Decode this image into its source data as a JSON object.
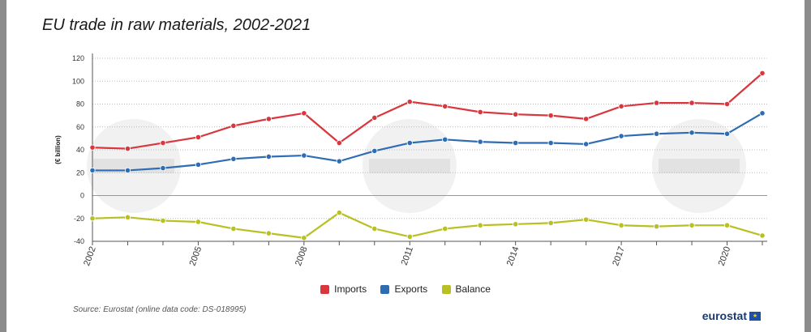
{
  "title": "EU trade in raw materials, 2002-2021",
  "source": "Source: Eurostat (online data code: DS-018995)",
  "brand": {
    "name": "eurostat",
    "flag_icon": "eu-flag"
  },
  "colors": {
    "imports": "#d9363e",
    "exports": "#2e6db4",
    "balance": "#b8c023"
  },
  "chart_data": {
    "type": "line",
    "title": "EU trade in raw materials, 2002-2021",
    "xlabel": "",
    "ylabel": "(€ billion)",
    "x": [
      2002,
      2003,
      2004,
      2005,
      2006,
      2007,
      2008,
      2009,
      2010,
      2011,
      2012,
      2013,
      2014,
      2015,
      2016,
      2017,
      2018,
      2019,
      2020,
      2021
    ],
    "xticks": [
      "2002",
      "2005",
      "2008",
      "2011",
      "2014",
      "2017",
      "2020"
    ],
    "yticks": [
      "120",
      "100",
      "80",
      "60",
      "40",
      "20",
      "0",
      "-20",
      "-40"
    ],
    "ylim": [
      -40,
      120
    ],
    "grid": true,
    "legend_position": "bottom-center",
    "series": [
      {
        "name": "Imports",
        "color": "#d9363e",
        "values": [
          42,
          41,
          46,
          51,
          61,
          67,
          72,
          46,
          68,
          82,
          78,
          73,
          71,
          70,
          67,
          78,
          81,
          81,
          80,
          107
        ]
      },
      {
        "name": "Exports",
        "color": "#2e6db4",
        "values": [
          22,
          22,
          24,
          27,
          32,
          34,
          35,
          30,
          39,
          46,
          49,
          47,
          46,
          46,
          45,
          52,
          54,
          55,
          54,
          72
        ]
      },
      {
        "name": "Balance",
        "color": "#b8c023",
        "values": [
          -20,
          -19,
          -22,
          -23,
          -29,
          -33,
          -37,
          -15,
          -29,
          -36,
          -29,
          -26,
          -25,
          -24,
          -21,
          -26,
          -27,
          -26,
          -26,
          -35
        ]
      }
    ]
  }
}
